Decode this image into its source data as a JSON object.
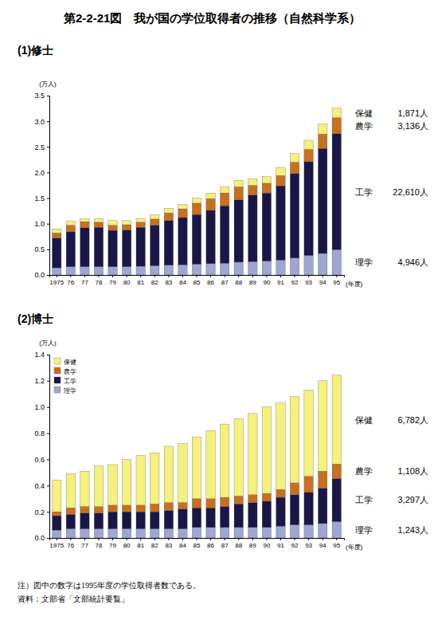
{
  "title": "第2-2-21図　我が国の学位取得者の推移（自然科学系）",
  "notes": [
    "注）図中の数字は1995年度の学位取得者数である。",
    "資料：文部省「文部統計要覧」"
  ],
  "chart_data": [
    {
      "type": "bar",
      "stacked": true,
      "title": "(1)修士",
      "ylabel": "(万人)",
      "xlabel": "(年度)",
      "categories": [
        "1975",
        "76",
        "77",
        "78",
        "79",
        "80",
        "81",
        "82",
        "83",
        "84",
        "85",
        "86",
        "87",
        "88",
        "89",
        "90",
        "91",
        "92",
        "93",
        "94",
        "95"
      ],
      "series": [
        {
          "name": "理学",
          "color": "#9ea6d4",
          "values": [
            0.14,
            0.16,
            0.16,
            0.16,
            0.16,
            0.16,
            0.17,
            0.18,
            0.19,
            0.2,
            0.21,
            0.22,
            0.23,
            0.25,
            0.26,
            0.27,
            0.29,
            0.33,
            0.38,
            0.42,
            0.4946
          ]
        },
        {
          "name": "工学",
          "color": "#1b1648",
          "values": [
            0.58,
            0.68,
            0.76,
            0.77,
            0.71,
            0.72,
            0.76,
            0.79,
            0.87,
            0.92,
            0.97,
            1.04,
            1.12,
            1.22,
            1.3,
            1.33,
            1.45,
            1.65,
            1.83,
            2.05,
            2.261
          ]
        },
        {
          "name": "農学",
          "color": "#c8701e",
          "values": [
            0.1,
            0.13,
            0.12,
            0.1,
            0.1,
            0.1,
            0.1,
            0.12,
            0.15,
            0.17,
            0.22,
            0.23,
            0.25,
            0.25,
            0.19,
            0.19,
            0.2,
            0.22,
            0.24,
            0.28,
            0.3136
          ]
        },
        {
          "name": "保健",
          "color": "#f6f07c",
          "values": [
            0.08,
            0.08,
            0.06,
            0.07,
            0.09,
            0.08,
            0.07,
            0.08,
            0.09,
            0.09,
            0.1,
            0.11,
            0.12,
            0.13,
            0.13,
            0.13,
            0.16,
            0.17,
            0.18,
            0.2,
            0.1871
          ]
        }
      ],
      "ylim": [
        0,
        3.5
      ],
      "yticks": [
        {
          "value": 0,
          "label": "0.0"
        },
        0.5,
        {
          "value": 1,
          "label": "1.0"
        },
        1.5,
        {
          "value": 2,
          "label": "2.0"
        },
        2.5,
        {
          "value": 3,
          "label": "3.0"
        },
        3.5
      ],
      "grid": false,
      "annotations": [
        {
          "label": "保健",
          "text": "1,871人"
        },
        {
          "label": "農学",
          "text": "3,136人"
        },
        {
          "label": "工学",
          "text": "22,610人"
        },
        {
          "label": "理学",
          "text": "4,946人"
        }
      ]
    },
    {
      "type": "bar",
      "stacked": true,
      "title": "(2)博士",
      "ylabel": "(万人)",
      "xlabel": "(年度)",
      "legend": "top-left",
      "categories": [
        "1975",
        "76",
        "77",
        "78",
        "79",
        "80",
        "81",
        "82",
        "83",
        "84",
        "85",
        "86",
        "87",
        "88",
        "89",
        "90",
        "91",
        "92",
        "93",
        "94",
        "95"
      ],
      "series": [
        {
          "name": "理学",
          "color": "#9ea6d4",
          "values": [
            0.06,
            0.07,
            0.07,
            0.07,
            0.07,
            0.07,
            0.07,
            0.07,
            0.07,
            0.07,
            0.08,
            0.08,
            0.08,
            0.08,
            0.08,
            0.08,
            0.09,
            0.1,
            0.1,
            0.11,
            0.1243
          ]
        },
        {
          "name": "工学",
          "color": "#1b1648",
          "values": [
            0.11,
            0.11,
            0.12,
            0.12,
            0.13,
            0.13,
            0.13,
            0.13,
            0.14,
            0.15,
            0.15,
            0.15,
            0.16,
            0.18,
            0.19,
            0.2,
            0.22,
            0.23,
            0.25,
            0.27,
            0.3297
          ]
        },
        {
          "name": "農学",
          "color": "#c8701e",
          "values": [
            0.03,
            0.05,
            0.05,
            0.05,
            0.05,
            0.05,
            0.05,
            0.06,
            0.06,
            0.05,
            0.07,
            0.07,
            0.07,
            0.06,
            0.06,
            0.06,
            0.06,
            0.09,
            0.12,
            0.13,
            0.1108
          ]
        },
        {
          "name": "保健",
          "color": "#f6f07c",
          "values": [
            0.24,
            0.26,
            0.27,
            0.31,
            0.31,
            0.35,
            0.38,
            0.39,
            0.43,
            0.45,
            0.47,
            0.52,
            0.56,
            0.59,
            0.62,
            0.66,
            0.66,
            0.66,
            0.66,
            0.69,
            0.6782
          ]
        }
      ],
      "ylim": [
        0,
        1.4
      ],
      "yticks": [
        {
          "value": 0,
          "label": "0.0"
        },
        0.2,
        0.4,
        0.6,
        0.8,
        {
          "value": 1,
          "label": "1.0"
        },
        1.2,
        1.4
      ],
      "grid": false,
      "annotations": [
        {
          "label": "保健",
          "text": "6,782人"
        },
        {
          "label": "農学",
          "text": "1,108人"
        },
        {
          "label": "工学",
          "text": "3,297人"
        },
        {
          "label": "理学",
          "text": "1,243人"
        }
      ]
    }
  ]
}
